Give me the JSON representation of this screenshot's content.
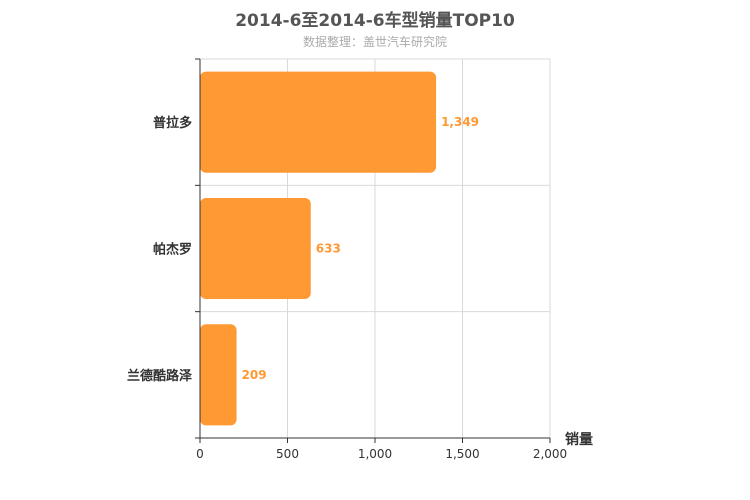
{
  "chart_data": {
    "type": "bar",
    "orientation": "horizontal",
    "title": "2014-6至2014-6车型销量TOP10",
    "subtitle": "数据整理：盖世汽车研究院",
    "categories": [
      "普拉多",
      "帕杰罗",
      "兰德酷路泽"
    ],
    "values": [
      1349,
      633,
      209
    ],
    "value_labels": [
      "1,349",
      "633",
      "209"
    ],
    "xlabel": "销量",
    "ylabel": "",
    "xlim": [
      0,
      2000
    ],
    "xticks": [
      0,
      500,
      1000,
      1500,
      2000
    ],
    "xtick_labels": [
      "0",
      "500",
      "1,000",
      "1,500",
      "2,000"
    ],
    "grid": true,
    "bar_color": "#ff9933",
    "label_color": "#ff9933"
  }
}
